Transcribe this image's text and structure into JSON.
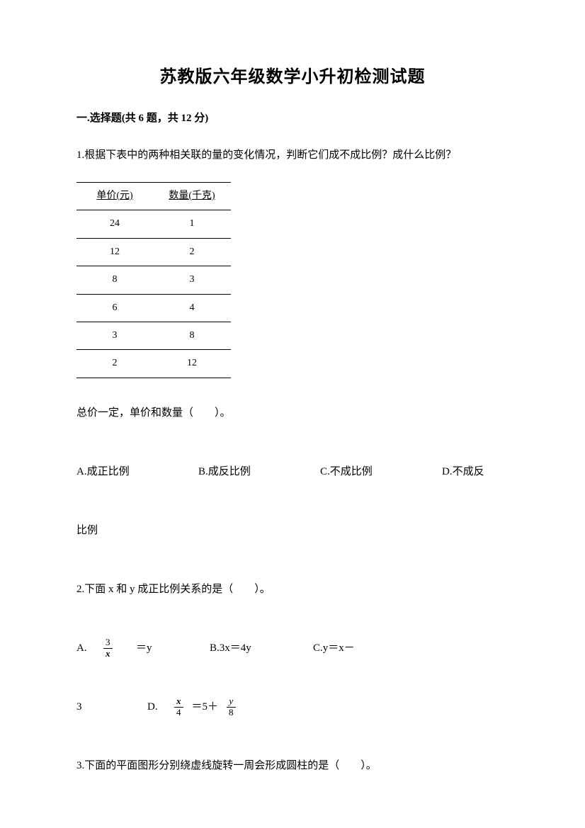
{
  "title": "苏教版六年级数学小升初检测试题",
  "section1": {
    "header": "一.选择题(共 6 题，共 12 分)"
  },
  "q1": {
    "text": "1.根据下表中的两种相关联的量的变化情况，判断它们成不成比例？成什么比例？",
    "table": {
      "headers": [
        "单价(元)",
        "数量(千克)"
      ],
      "rows": [
        [
          "24",
          "1"
        ],
        [
          "12",
          "2"
        ],
        [
          "8",
          "3"
        ],
        [
          "6",
          "4"
        ],
        [
          "3",
          "8"
        ],
        [
          "2",
          "12"
        ]
      ]
    },
    "subtext": "总价一定，单价和数量（　　）。",
    "options": {
      "a": "A.成正比例",
      "b": "B.成反比例",
      "c": "C.不成比例",
      "d": "D.不成反",
      "d_wrap": "比例"
    }
  },
  "q2": {
    "text": "2.下面 x 和 y 成正比例关系的是（　　）。",
    "optA_label": "A.",
    "optA_num": "3",
    "optA_den": "x",
    "optA_eq": "＝y",
    "optB": "B.3x＝4y",
    "optC": "C.y＝x－",
    "row2_three": "3",
    "optD_label": "D.",
    "optD_num": "x",
    "optD_den": "4",
    "optD_eq": "＝5＋",
    "optD_num2": "y",
    "optD_den2": "8"
  },
  "q3": {
    "text": "3.下面的平面图形分别绕虚线旋转一周会形成圆柱的是（　　）。"
  },
  "colors": {
    "background": "#ffffff",
    "text": "#000000",
    "border": "#000000"
  }
}
